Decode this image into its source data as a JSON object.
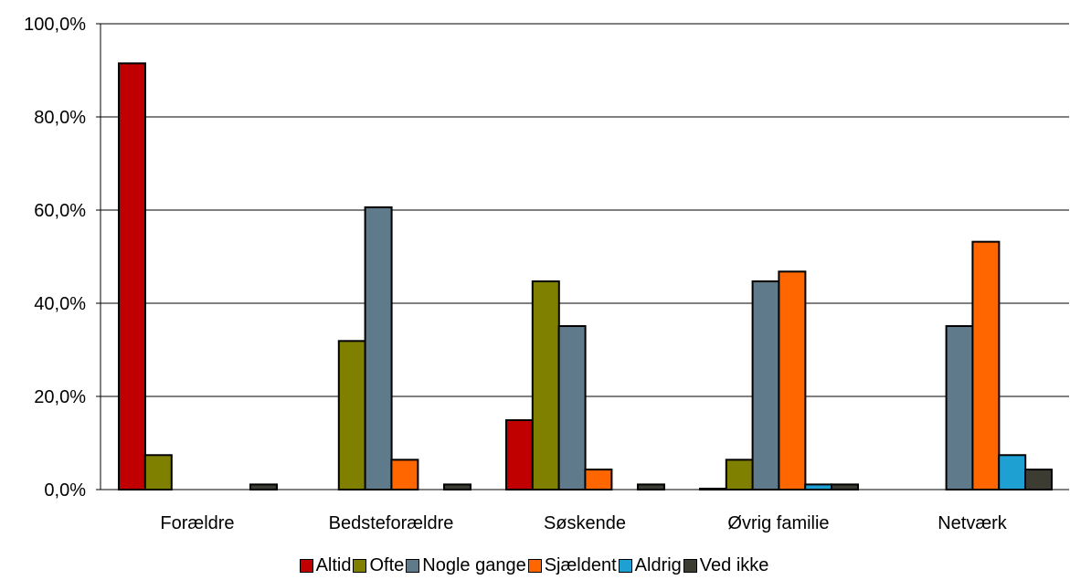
{
  "chart_data": {
    "type": "bar",
    "title": "",
    "xlabel": "",
    "ylabel": "",
    "categories": [
      "Forældre",
      "Bedsteforældre",
      "Søskende",
      "Øvrig familie",
      "Netværk"
    ],
    "ylim": [
      0,
      100
    ],
    "y_ticks": [
      0,
      20,
      40,
      60,
      80,
      100
    ],
    "y_tick_labels": [
      "0,0%",
      "20,0%",
      "40,0%",
      "60,0%",
      "80,0%",
      "100,0%"
    ],
    "grid": true,
    "legend_position": "bottom",
    "series": [
      {
        "name": "Altid",
        "color": "#C00000",
        "values": [
          91.5,
          0,
          14.9,
          0.2,
          0
        ]
      },
      {
        "name": "Ofte",
        "color": "#808000",
        "values": [
          7.4,
          31.9,
          44.7,
          6.4,
          0
        ]
      },
      {
        "name": "Nogle gange",
        "color": "#5F7A8A",
        "values": [
          0,
          60.6,
          35.1,
          44.7,
          35.1
        ]
      },
      {
        "name": "Sjældent",
        "color": "#FF6600",
        "values": [
          0,
          6.4,
          4.3,
          46.8,
          53.2
        ]
      },
      {
        "name": "Aldrig",
        "color": "#1EA0D2",
        "values": [
          0,
          0,
          0,
          1.1,
          7.4
        ]
      },
      {
        "name": "Ved ikke",
        "color": "#3C3C32",
        "values": [
          1.1,
          1.1,
          1.1,
          1.1,
          4.3
        ]
      }
    ]
  }
}
